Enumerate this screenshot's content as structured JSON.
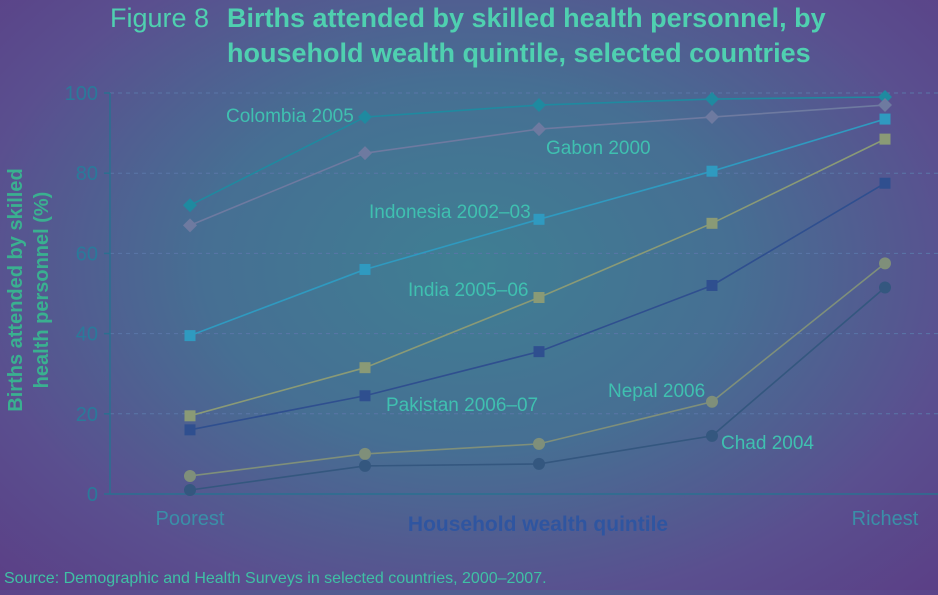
{
  "chart_data": {
    "type": "line",
    "title_prefix": "Figure 8",
    "title_line1": "Births attended by skilled health personnel, by",
    "title_line2": "household wealth quintile, selected countries",
    "xlabel": "Household wealth quintile",
    "ylabel_line1": "Births attended by skilled",
    "ylabel_line2": "health personnel (%)",
    "categories": [
      "Poorest",
      "",
      "",
      "",
      "Richest"
    ],
    "ylim": [
      0,
      100
    ],
    "yticks": [
      "0",
      "20",
      "40",
      "60",
      "80",
      "100"
    ],
    "grid": "horizontal dashed",
    "legend": "none (direct labels)",
    "source": "Source: Demographic and Health Surveys in selected countries, 2000–2007.",
    "series": [
      {
        "name": "Colombia 2005",
        "marker": "diamond",
        "color": "#1f8aa0",
        "values": [
          72,
          94,
          97,
          98.5,
          99
        ]
      },
      {
        "name": "Gabon 2000",
        "marker": "diamond",
        "color": "#6e7aa0",
        "values": [
          67,
          85,
          91,
          94,
          97
        ]
      },
      {
        "name": "Indonesia 2002–03",
        "marker": "square",
        "color": "#2f9ac0",
        "values": [
          39.5,
          56,
          68.5,
          80.5,
          93.5
        ]
      },
      {
        "name": "India 2005–06",
        "marker": "square",
        "color": "#8a9a76",
        "values": [
          19.5,
          31.5,
          49,
          67.5,
          88.5
        ]
      },
      {
        "name": "Pakistan 2006–07",
        "marker": "square",
        "color": "#2f4f8f",
        "values": [
          16,
          24.5,
          35.5,
          52,
          77.5
        ]
      },
      {
        "name": "Nepal 2006",
        "marker": "circle",
        "color": "#7f8f7a",
        "values": [
          4.5,
          10,
          12.5,
          23,
          57.5
        ]
      },
      {
        "name": "Chad 2004",
        "marker": "circle",
        "color": "#34577f",
        "values": [
          1,
          7,
          7.5,
          14.5,
          51.5
        ]
      }
    ]
  }
}
